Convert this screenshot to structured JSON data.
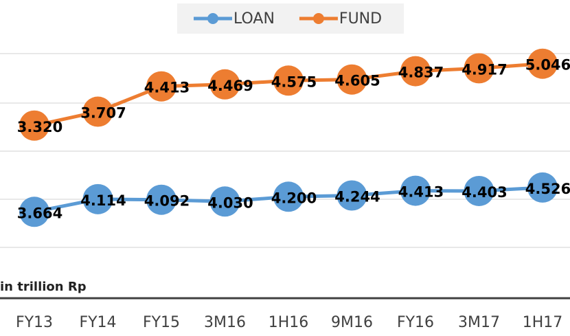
{
  "chart_data": {
    "type": "line",
    "categories": [
      "FY13",
      "FY14",
      "FY15",
      "3M16",
      "1H16",
      "9M16",
      "FY16",
      "3M17",
      "1H17"
    ],
    "series": [
      {
        "name": "LOAN",
        "color": "#5b9bd5",
        "values": [
          3.664,
          4.114,
          4.092,
          4.03,
          4.2,
          4.244,
          4.413,
          4.403,
          4.526
        ],
        "value_labels": [
          "3.664",
          "4.114",
          "4.092",
          "4.030",
          "4.200",
          "4.244",
          "4.413",
          "4.403",
          "4.526"
        ]
      },
      {
        "name": "FUND",
        "color": "#ed7d31",
        "axis": "y2",
        "values": [
          3.32,
          3.707,
          4.413,
          4.469,
          4.575,
          4.605,
          4.837,
          4.917,
          5.046
        ],
        "value_labels": [
          "3.320",
          "3.707",
          "4.413",
          "4.469",
          "4.575",
          "4.605",
          "4.837",
          "4.917",
          "5.046"
        ]
      }
    ],
    "ylim": [
      2.5,
      9.5
    ],
    "y2lim": [
      0,
      5.5
    ],
    "annotation": "in trillion Rp",
    "legend": "top"
  }
}
